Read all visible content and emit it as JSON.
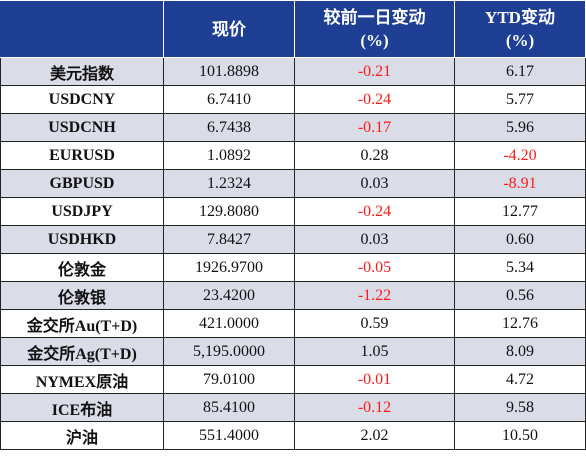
{
  "header": {
    "col_current": "现价",
    "col_daily_l1": "较前一日变动",
    "col_daily_l2": "(%)",
    "col_ytd_l1": "YTD变动",
    "col_ytd_l2": "(%)"
  },
  "rows": [
    {
      "name": "美元指数",
      "price": "101.8898",
      "daily": "-0.21",
      "ytd": "6.17"
    },
    {
      "name": "USDCNY",
      "price": "6.7410",
      "daily": "-0.24",
      "ytd": "5.77"
    },
    {
      "name": "USDCNH",
      "price": "6.7438",
      "daily": "-0.17",
      "ytd": "5.96"
    },
    {
      "name": "EURUSD",
      "price": "1.0892",
      "daily": "0.28",
      "ytd": "-4.20"
    },
    {
      "name": "GBPUSD",
      "price": "1.2324",
      "daily": "0.03",
      "ytd": "-8.91"
    },
    {
      "name": "USDJPY",
      "price": "129.8080",
      "daily": "-0.24",
      "ytd": "12.77"
    },
    {
      "name": "USDHKD",
      "price": "7.8427",
      "daily": "0.03",
      "ytd": "0.60"
    },
    {
      "name": "伦敦金",
      "price": "1926.9700",
      "daily": "-0.05",
      "ytd": "5.34"
    },
    {
      "name": "伦敦银",
      "price": "23.4200",
      "daily": "-1.22",
      "ytd": "0.56"
    },
    {
      "name": "金交所Au(T+D)",
      "price": "421.0000",
      "daily": "0.59",
      "ytd": "12.76"
    },
    {
      "name": "金交所Ag(T+D)",
      "price": "5,195.0000",
      "daily": "1.05",
      "ytd": "8.09"
    },
    {
      "name": "NYMEX原油",
      "price": "79.0100",
      "daily": "-0.01",
      "ytd": "4.72"
    },
    {
      "name": "ICE布油",
      "price": "85.4100",
      "daily": "-0.12",
      "ytd": "9.58"
    },
    {
      "name": "沪油",
      "price": "551.4000",
      "daily": "2.02",
      "ytd": "10.50"
    }
  ],
  "colors": {
    "header_bg": "#1f3f95",
    "header_text": "#ffffff",
    "shaded_row": "#dadce8",
    "negative_text": "#ff1a1a"
  }
}
